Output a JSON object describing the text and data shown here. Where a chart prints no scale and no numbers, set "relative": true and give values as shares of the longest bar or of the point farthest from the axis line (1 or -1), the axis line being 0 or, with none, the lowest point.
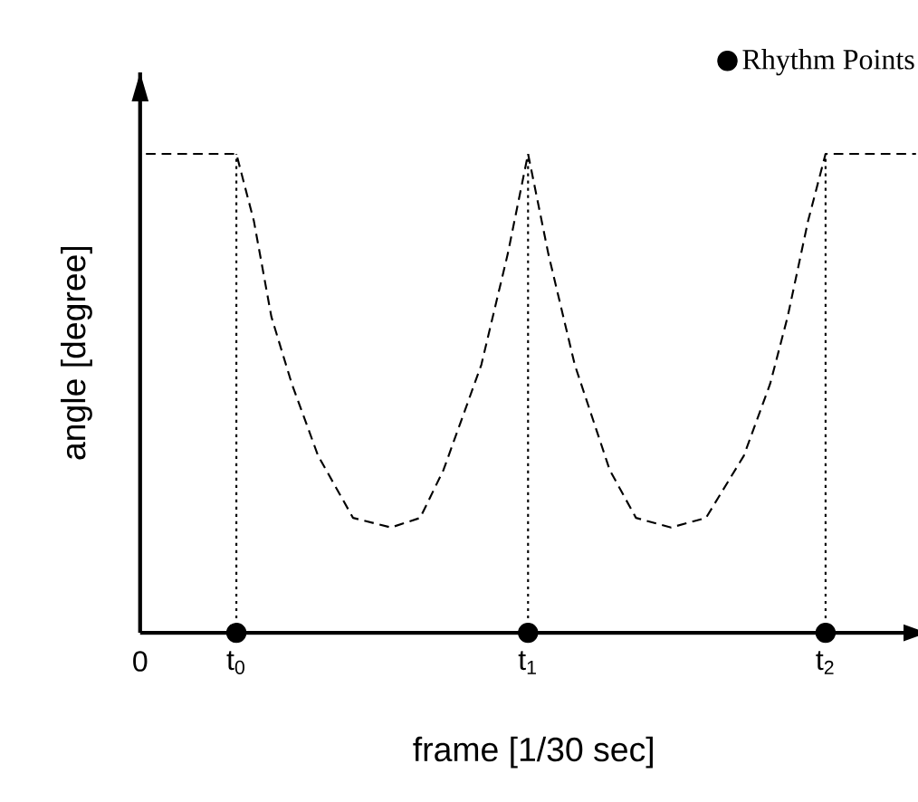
{
  "chart_data": {
    "type": "line",
    "relative": true,
    "xlabel": "frame  [1/30 sec]",
    "ylabel": "angle  [degree]",
    "xlim": [
      0,
      2.7
    ],
    "xticks": [
      {
        "value": 0,
        "label": "0"
      },
      {
        "value": 0.33,
        "label": "t$_{0}$"
      },
      {
        "value": 1.33,
        "label": "t$_{1}$"
      },
      {
        "value": 2.35,
        "label": "t$_{2}$"
      }
    ],
    "series": [
      {
        "color": "#000000",
        "line_style": "dashed",
        "marker": "none",
        "x": [
          0.02,
          0.33,
          0.39,
          0.45,
          0.52,
          0.61,
          0.73,
          0.86,
          0.96,
          1.04,
          1.17,
          1.26,
          1.33,
          1.4,
          1.49,
          1.61,
          1.7,
          1.82,
          1.94,
          2.07,
          2.16,
          2.22,
          2.29,
          2.35,
          2.66
        ],
        "values": [
          1,
          1,
          0.86,
          0.66,
          0.52,
          0.37,
          0.24,
          0.22,
          0.24,
          0.34,
          0.56,
          0.79,
          1,
          0.79,
          0.56,
          0.34,
          0.24,
          0.22,
          0.24,
          0.37,
          0.52,
          0.66,
          0.86,
          1,
          1
        ]
      },
      {
        "type": "scatter",
        "name": "Rhythm Points",
        "color": "#000000",
        "marker": "circle",
        "x": [
          0.33,
          1.33,
          2.35
        ],
        "values": [
          0,
          0,
          0
        ]
      }
    ],
    "ref_lines": [
      {
        "axis": "x",
        "value": 0.33,
        "color": "#000000",
        "line_style": "dotted"
      },
      {
        "axis": "x",
        "value": 1.33,
        "color": "#000000",
        "line_style": "dotted"
      },
      {
        "axis": "x",
        "value": 2.35,
        "color": "#000000",
        "line_style": "dotted"
      }
    ],
    "legend": "top right"
  }
}
